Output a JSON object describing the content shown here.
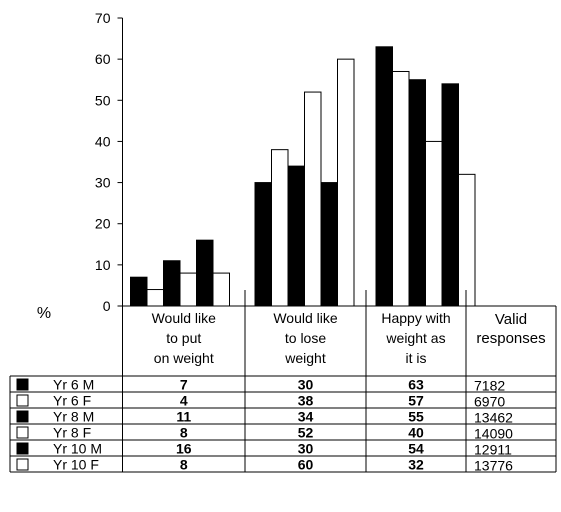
{
  "chart_data": {
    "type": "bar",
    "ylabel": "%",
    "ylim": [
      0,
      70
    ],
    "y_ticks": [
      "0",
      "10",
      "20",
      "30",
      "40",
      "50",
      "60",
      "70"
    ],
    "categories": [
      [
        "Would like",
        "to put",
        "on weight"
      ],
      [
        "Would like",
        "to lose",
        "weight"
      ],
      [
        "Happy with",
        "weight as",
        "it is"
      ]
    ],
    "extra_column": [
      "Valid",
      "responses"
    ],
    "series": [
      {
        "name": "Yr 6 M",
        "fill": "#000000",
        "values": [
          7,
          30,
          63
        ],
        "valid": "7182"
      },
      {
        "name": "Yr 6 F",
        "fill": "#ffffff",
        "values": [
          4,
          38,
          57
        ],
        "valid": "6970"
      },
      {
        "name": "Yr 8 M",
        "fill": "#000000",
        "values": [
          11,
          34,
          55
        ],
        "valid": "13462"
      },
      {
        "name": "Yr 8 F",
        "fill": "#ffffff",
        "values": [
          8,
          52,
          40
        ],
        "valid": "14090"
      },
      {
        "name": "Yr 10 M",
        "fill": "#000000",
        "values": [
          16,
          30,
          54
        ],
        "valid": "12911"
      },
      {
        "name": "Yr 10 F",
        "fill": "#ffffff",
        "values": [
          8,
          60,
          32
        ],
        "valid": "13776"
      }
    ]
  }
}
